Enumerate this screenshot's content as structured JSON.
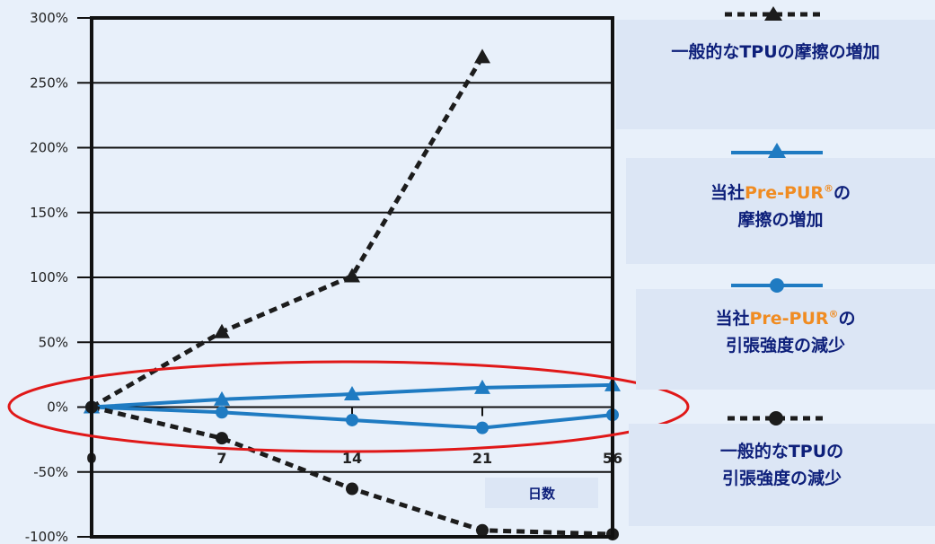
{
  "chart_data": {
    "type": "line",
    "x_tick_labels": [
      "0",
      "7",
      "14",
      "21",
      "56"
    ],
    "xlabel": "日数",
    "ylim": [
      -100,
      300
    ],
    "y_tick_values": [
      300,
      250,
      200,
      150,
      100,
      50,
      0,
      -50,
      -100
    ],
    "y_tick_labels": [
      "300%",
      "250%",
      "200%",
      "150%",
      "100%",
      "50%",
      "0%",
      "-50%",
      "-100%"
    ],
    "grid": true,
    "legend_position": "right",
    "series": [
      {
        "name": "一般的なTPUの摩擦の増加",
        "x_index": [
          0,
          1,
          2,
          3
        ],
        "values": [
          0,
          58,
          101,
          270
        ],
        "color": "#1c1c1c",
        "dash": true,
        "marker": "triangle"
      },
      {
        "name": "当社Pre-PUR®の摩擦の増加",
        "x_index": [
          0,
          1,
          2,
          3,
          4
        ],
        "values": [
          0,
          6,
          10,
          15,
          17
        ],
        "color": "#1f7bc2",
        "dash": false,
        "marker": "triangle"
      },
      {
        "name": "当社Pre-PUR®の引張強度の減少",
        "x_index": [
          0,
          1,
          2,
          3,
          4
        ],
        "values": [
          0,
          -4,
          -10,
          -16,
          -6
        ],
        "color": "#1f7bc2",
        "dash": false,
        "marker": "circle"
      },
      {
        "name": "一般的なTPUの引張強度の減少",
        "x_index": [
          0,
          1,
          2,
          3,
          4
        ],
        "values": [
          0,
          -24,
          -63,
          -95,
          -98
        ],
        "color": "#1c1c1c",
        "dash": true,
        "marker": "circle"
      }
    ],
    "annotation": {
      "shape": "ellipse",
      "color": "#e01818"
    }
  },
  "legend": {
    "item1": {
      "line1": "一般的なTPUの摩擦の増加"
    },
    "item2": {
      "prefix": "当社",
      "brand": "Pre-PUR",
      "reg": "®",
      "suffix": "の",
      "line2": "摩擦の増加"
    },
    "item3": {
      "prefix": "当社",
      "brand": "Pre-PUR",
      "reg": "®",
      "suffix": "の",
      "line2": "引張強度の減少"
    },
    "item4": {
      "line1": "一般的なTPUの",
      "line2": "引張強度の減少"
    }
  }
}
